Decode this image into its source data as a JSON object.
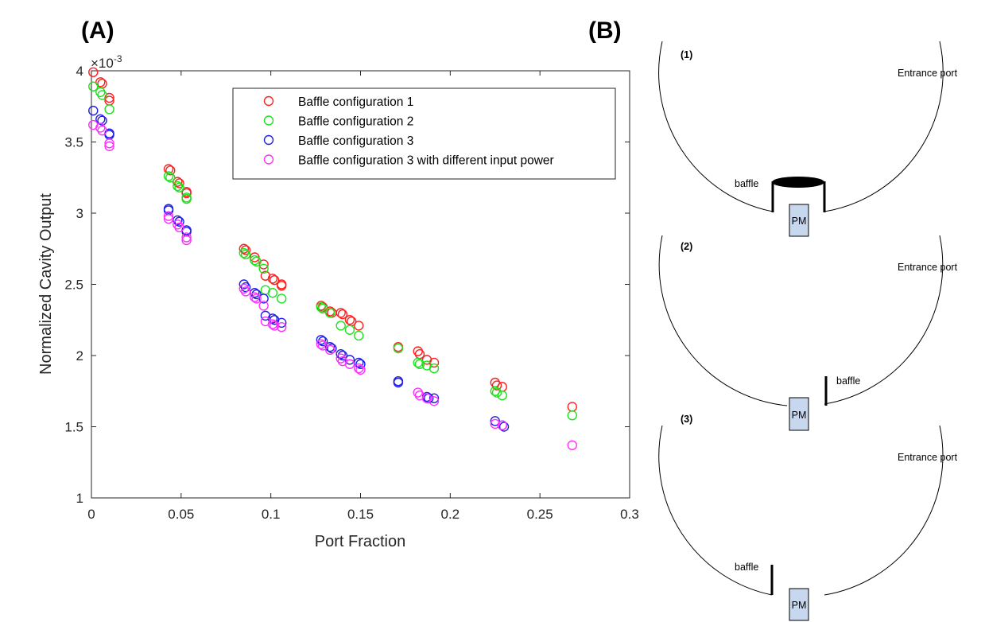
{
  "panel_a_label": "(A)",
  "panel_b_label": "(B)",
  "chart_data": {
    "type": "scatter",
    "xlabel": "Port Fraction",
    "ylabel": "Normalized Cavity Output",
    "y_multiplier": "×10",
    "y_multiplier_exp": "-3",
    "xlim": [
      0,
      0.3
    ],
    "ylim": [
      1,
      4
    ],
    "x_ticks": [
      "0",
      "0.05",
      "0.1",
      "0.15",
      "0.2",
      "0.25",
      "0.3"
    ],
    "y_ticks": [
      "1",
      "1.5",
      "2",
      "2.5",
      "3",
      "3.5",
      "4"
    ],
    "marker": "open circle",
    "grid": false,
    "legend_position": "top-right",
    "series": [
      {
        "name": "Baffle configuration 1",
        "color": "#ff2020",
        "points": [
          [
            0.001,
            3.99
          ],
          [
            0.005,
            3.92
          ],
          [
            0.006,
            3.91
          ],
          [
            0.01,
            3.81
          ],
          [
            0.01,
            3.79
          ],
          [
            0.043,
            3.31
          ],
          [
            0.044,
            3.3
          ],
          [
            0.048,
            3.22
          ],
          [
            0.049,
            3.21
          ],
          [
            0.053,
            3.15
          ],
          [
            0.053,
            3.14
          ],
          [
            0.085,
            2.75
          ],
          [
            0.086,
            2.74
          ],
          [
            0.091,
            2.69
          ],
          [
            0.096,
            2.64
          ],
          [
            0.097,
            2.56
          ],
          [
            0.101,
            2.54
          ],
          [
            0.102,
            2.53
          ],
          [
            0.106,
            2.5
          ],
          [
            0.106,
            2.49
          ],
          [
            0.128,
            2.35
          ],
          [
            0.129,
            2.34
          ],
          [
            0.133,
            2.31
          ],
          [
            0.134,
            2.3
          ],
          [
            0.139,
            2.3
          ],
          [
            0.14,
            2.29
          ],
          [
            0.144,
            2.25
          ],
          [
            0.145,
            2.24
          ],
          [
            0.149,
            2.21
          ],
          [
            0.171,
            2.06
          ],
          [
            0.182,
            2.03
          ],
          [
            0.183,
            2.01
          ],
          [
            0.187,
            1.97
          ],
          [
            0.191,
            1.95
          ],
          [
            0.225,
            1.81
          ],
          [
            0.226,
            1.79
          ],
          [
            0.229,
            1.78
          ],
          [
            0.268,
            1.64
          ]
        ]
      },
      {
        "name": "Baffle configuration 2",
        "color": "#20e020",
        "points": [
          [
            0.001,
            3.89
          ],
          [
            0.005,
            3.85
          ],
          [
            0.006,
            3.83
          ],
          [
            0.01,
            3.73
          ],
          [
            0.043,
            3.26
          ],
          [
            0.044,
            3.25
          ],
          [
            0.048,
            3.19
          ],
          [
            0.049,
            3.18
          ],
          [
            0.053,
            3.11
          ],
          [
            0.053,
            3.1
          ],
          [
            0.085,
            2.72
          ],
          [
            0.086,
            2.71
          ],
          [
            0.091,
            2.67
          ],
          [
            0.092,
            2.66
          ],
          [
            0.096,
            2.61
          ],
          [
            0.097,
            2.46
          ],
          [
            0.101,
            2.44
          ],
          [
            0.106,
            2.4
          ],
          [
            0.128,
            2.34
          ],
          [
            0.129,
            2.33
          ],
          [
            0.133,
            2.3
          ],
          [
            0.139,
            2.21
          ],
          [
            0.144,
            2.18
          ],
          [
            0.149,
            2.14
          ],
          [
            0.171,
            2.05
          ],
          [
            0.182,
            1.95
          ],
          [
            0.183,
            1.94
          ],
          [
            0.187,
            1.93
          ],
          [
            0.191,
            1.91
          ],
          [
            0.225,
            1.75
          ],
          [
            0.226,
            1.74
          ],
          [
            0.229,
            1.72
          ],
          [
            0.268,
            1.58
          ]
        ]
      },
      {
        "name": "Baffle configuration 3",
        "color": "#2020e8",
        "points": [
          [
            0.001,
            3.72
          ],
          [
            0.005,
            3.66
          ],
          [
            0.006,
            3.65
          ],
          [
            0.01,
            3.56
          ],
          [
            0.01,
            3.55
          ],
          [
            0.043,
            3.03
          ],
          [
            0.043,
            3.02
          ],
          [
            0.048,
            2.95
          ],
          [
            0.049,
            2.94
          ],
          [
            0.053,
            2.88
          ],
          [
            0.053,
            2.87
          ],
          [
            0.085,
            2.5
          ],
          [
            0.086,
            2.48
          ],
          [
            0.091,
            2.44
          ],
          [
            0.092,
            2.43
          ],
          [
            0.096,
            2.4
          ],
          [
            0.097,
            2.28
          ],
          [
            0.101,
            2.26
          ],
          [
            0.102,
            2.25
          ],
          [
            0.106,
            2.23
          ],
          [
            0.128,
            2.11
          ],
          [
            0.129,
            2.1
          ],
          [
            0.133,
            2.06
          ],
          [
            0.134,
            2.05
          ],
          [
            0.139,
            2.01
          ],
          [
            0.14,
            2.0
          ],
          [
            0.144,
            1.97
          ],
          [
            0.149,
            1.95
          ],
          [
            0.15,
            1.94
          ],
          [
            0.171,
            1.82
          ],
          [
            0.171,
            1.81
          ],
          [
            0.187,
            1.71
          ],
          [
            0.188,
            1.7
          ],
          [
            0.191,
            1.7
          ],
          [
            0.225,
            1.54
          ],
          [
            0.229,
            1.51
          ],
          [
            0.23,
            1.5
          ]
        ]
      },
      {
        "name": "Baffle configuration 3 with different input power",
        "color": "#ff30ff",
        "points": [
          [
            0.001,
            3.62
          ],
          [
            0.005,
            3.6
          ],
          [
            0.006,
            3.58
          ],
          [
            0.01,
            3.49
          ],
          [
            0.01,
            3.47
          ],
          [
            0.043,
            2.98
          ],
          [
            0.043,
            2.96
          ],
          [
            0.048,
            2.92
          ],
          [
            0.049,
            2.9
          ],
          [
            0.053,
            2.83
          ],
          [
            0.053,
            2.81
          ],
          [
            0.085,
            2.47
          ],
          [
            0.086,
            2.45
          ],
          [
            0.091,
            2.41
          ],
          [
            0.092,
            2.4
          ],
          [
            0.096,
            2.35
          ],
          [
            0.097,
            2.24
          ],
          [
            0.101,
            2.22
          ],
          [
            0.102,
            2.21
          ],
          [
            0.106,
            2.2
          ],
          [
            0.128,
            2.08
          ],
          [
            0.129,
            2.07
          ],
          [
            0.133,
            2.04
          ],
          [
            0.139,
            1.98
          ],
          [
            0.14,
            1.96
          ],
          [
            0.144,
            1.94
          ],
          [
            0.149,
            1.91
          ],
          [
            0.15,
            1.9
          ],
          [
            0.182,
            1.74
          ],
          [
            0.183,
            1.72
          ],
          [
            0.187,
            1.7
          ],
          [
            0.191,
            1.68
          ],
          [
            0.225,
            1.52
          ],
          [
            0.229,
            1.51
          ],
          [
            0.268,
            1.37
          ]
        ]
      }
    ]
  },
  "diagram": {
    "colors": {
      "pm_fill": "#c7d8ee",
      "line": "#000000"
    },
    "configs": [
      {
        "number": "(1)",
        "entrance_label": "Entrance port",
        "baffle_label": "baffle",
        "pm_label": "PM"
      },
      {
        "number": "(2)",
        "entrance_label": "Entrance port",
        "baffle_label": "baffle",
        "pm_label": "PM"
      },
      {
        "number": "(3)",
        "entrance_label": "Entrance port",
        "baffle_label": "baffle",
        "pm_label": "PM"
      }
    ]
  }
}
